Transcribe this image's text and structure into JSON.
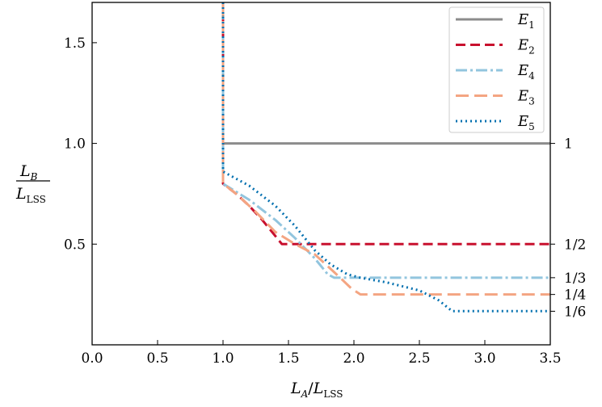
{
  "chart_data": {
    "type": "line",
    "xlabel": {
      "main": "L",
      "sub_a": "A",
      "slash": "/",
      "main2": "L",
      "sub_lss": "LSS"
    },
    "ylabel": {
      "num_main": "L",
      "num_sub": "B",
      "den_main": "L",
      "den_sub": "LSS"
    },
    "xlim": [
      0.0,
      3.5
    ],
    "ylim": [
      0.0,
      1.7
    ],
    "xticks": [
      0.0,
      0.5,
      1.0,
      1.5,
      2.0,
      2.5,
      3.0,
      3.5
    ],
    "xtick_labels": [
      "0.0",
      "0.5",
      "1.0",
      "1.5",
      "2.0",
      "2.5",
      "3.0",
      "3.5"
    ],
    "yticks": [
      0.5,
      1.0,
      1.5
    ],
    "ytick_labels": [
      "0.5",
      "1.0",
      "1.5"
    ],
    "right_ticks": [
      1.0,
      0.5,
      0.3333,
      0.25,
      0.1667
    ],
    "right_tick_labels": [
      "1",
      "1/2",
      "1/3",
      "1/4",
      "1/6"
    ],
    "legend_position": "top-right",
    "series": [
      {
        "name": "E1",
        "label_main": "E",
        "label_sub": "1",
        "color": "#8c8c8c",
        "dash": "",
        "x": [
          1.0,
          1.0,
          3.5
        ],
        "y": [
          1.7,
          1.0,
          1.0
        ]
      },
      {
        "name": "E2",
        "label_main": "E",
        "label_sub": "2",
        "color": "#c8102e",
        "dash": "12,6",
        "x": [
          1.0,
          1.0,
          1.1,
          1.2,
          1.3,
          1.4,
          1.45,
          1.5,
          3.5
        ],
        "y": [
          1.7,
          0.8,
          0.75,
          0.69,
          0.62,
          0.54,
          0.5,
          0.5,
          0.5
        ]
      },
      {
        "name": "E4",
        "label_main": "E",
        "label_sub": "4",
        "color": "#92c5de",
        "dash": "14,4,3,4",
        "x": [
          1.0,
          1.0,
          1.2,
          1.4,
          1.55,
          1.7,
          1.8,
          1.85,
          3.5
        ],
        "y": [
          1.7,
          0.8,
          0.72,
          0.62,
          0.53,
          0.43,
          0.35,
          0.333,
          0.333
        ]
      },
      {
        "name": "E3",
        "label_main": "E",
        "label_sub": "3",
        "color": "#f4a582",
        "dash": "16,7",
        "x": [
          1.0,
          1.0,
          1.1,
          1.25,
          1.4,
          1.55,
          1.7,
          1.8,
          1.9,
          1.98,
          2.05,
          3.5
        ],
        "y": [
          1.7,
          0.8,
          0.75,
          0.66,
          0.56,
          0.5,
          0.45,
          0.39,
          0.33,
          0.28,
          0.25,
          0.25
        ]
      },
      {
        "name": "E5",
        "label_main": "E",
        "label_sub": "5",
        "color": "#0571b0",
        "dash": "2,4",
        "x": [
          1.0,
          1.0,
          1.2,
          1.4,
          1.55,
          1.7,
          1.82,
          1.95,
          2.05,
          2.25,
          2.5,
          2.65,
          2.75,
          3.5
        ],
        "y": [
          1.7,
          0.86,
          0.79,
          0.69,
          0.59,
          0.47,
          0.4,
          0.35,
          0.333,
          0.31,
          0.27,
          0.22,
          0.167,
          0.167
        ]
      }
    ]
  }
}
